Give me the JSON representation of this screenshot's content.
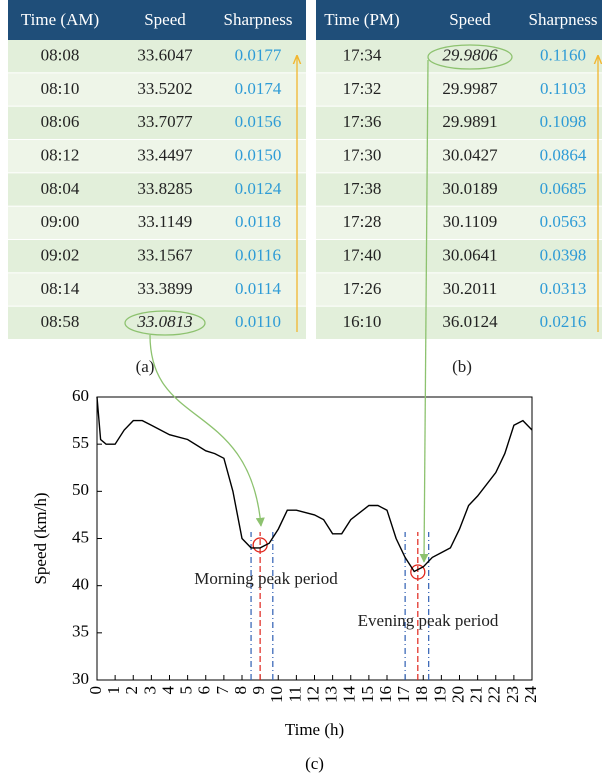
{
  "tables": [
    {
      "label": "(a)",
      "header": [
        "Time (AM)",
        "Speed",
        "Sharpness"
      ],
      "rows": [
        [
          "08:08",
          "33.6047",
          "0.0177"
        ],
        [
          "08:10",
          "33.5202",
          "0.0174"
        ],
        [
          "08:06",
          "33.7077",
          "0.0156"
        ],
        [
          "08:12",
          "33.4497",
          "0.0150"
        ],
        [
          "08:04",
          "33.8285",
          "0.0124"
        ],
        [
          "09:00",
          "33.1149",
          "0.0118"
        ],
        [
          "09:02",
          "33.1567",
          "0.0116"
        ],
        [
          "08:14",
          "33.3899",
          "0.0114"
        ],
        [
          "08:58",
          "33.0813",
          "0.0110"
        ]
      ]
    },
    {
      "label": "(b)",
      "header": [
        "Time (PM)",
        "Speed",
        "Sharpness"
      ],
      "rows": [
        [
          "17:34",
          "29.9806",
          "0.1160"
        ],
        [
          "17:32",
          "29.9987",
          "0.1103"
        ],
        [
          "17:36",
          "29.9891",
          "0.1098"
        ],
        [
          "17:30",
          "30.0427",
          "0.0864"
        ],
        [
          "17:38",
          "30.0189",
          "0.0685"
        ],
        [
          "17:28",
          "30.1109",
          "0.0563"
        ],
        [
          "17:40",
          "30.0641",
          "0.0398"
        ],
        [
          "17:26",
          "30.2011",
          "0.0313"
        ],
        [
          "16:10",
          "36.0124",
          "0.0216"
        ]
      ]
    }
  ],
  "chart_data": {
    "type": "line",
    "label": "(c)",
    "xlabel": "Time (h)",
    "ylabel": "Speed (km/h)",
    "x": [
      0,
      0.2,
      0.5,
      1,
      1.5,
      2,
      2.5,
      3,
      4,
      5,
      6,
      6.5,
      7,
      7.5,
      8,
      8.5,
      9,
      9.5,
      10,
      10.5,
      11,
      12,
      12.5,
      13,
      13.5,
      14,
      15,
      15.5,
      16,
      16.5,
      17,
      17.5,
      18,
      18.5,
      19,
      19.5,
      20,
      20.5,
      21,
      22,
      22.5,
      23,
      23.5,
      24
    ],
    "values": [
      60,
      55.5,
      55,
      55,
      56.5,
      57.5,
      57.5,
      57,
      56,
      55.5,
      54.3,
      54,
      53.5,
      50,
      45,
      44,
      44,
      44.5,
      46,
      48,
      48,
      47.5,
      47,
      45.5,
      45.5,
      47,
      48.5,
      48.5,
      48,
      45,
      43,
      41.5,
      42,
      43,
      43.5,
      44,
      46,
      48.5,
      49.5,
      52,
      54,
      57,
      57.5,
      56.5
    ],
    "color": "#000000",
    "xlim": [
      0,
      24
    ],
    "xticks": [
      0,
      1,
      2,
      3,
      4,
      5,
      6,
      7,
      8,
      9,
      10,
      11,
      12,
      13,
      14,
      15,
      16,
      17,
      18,
      19,
      20,
      21,
      22,
      23,
      24
    ],
    "ylim": [
      30,
      60
    ],
    "yticks": [
      30,
      35,
      40,
      45,
      50,
      55,
      60
    ],
    "annotations": [
      "Morning peak period",
      "Evening peak period"
    ]
  }
}
